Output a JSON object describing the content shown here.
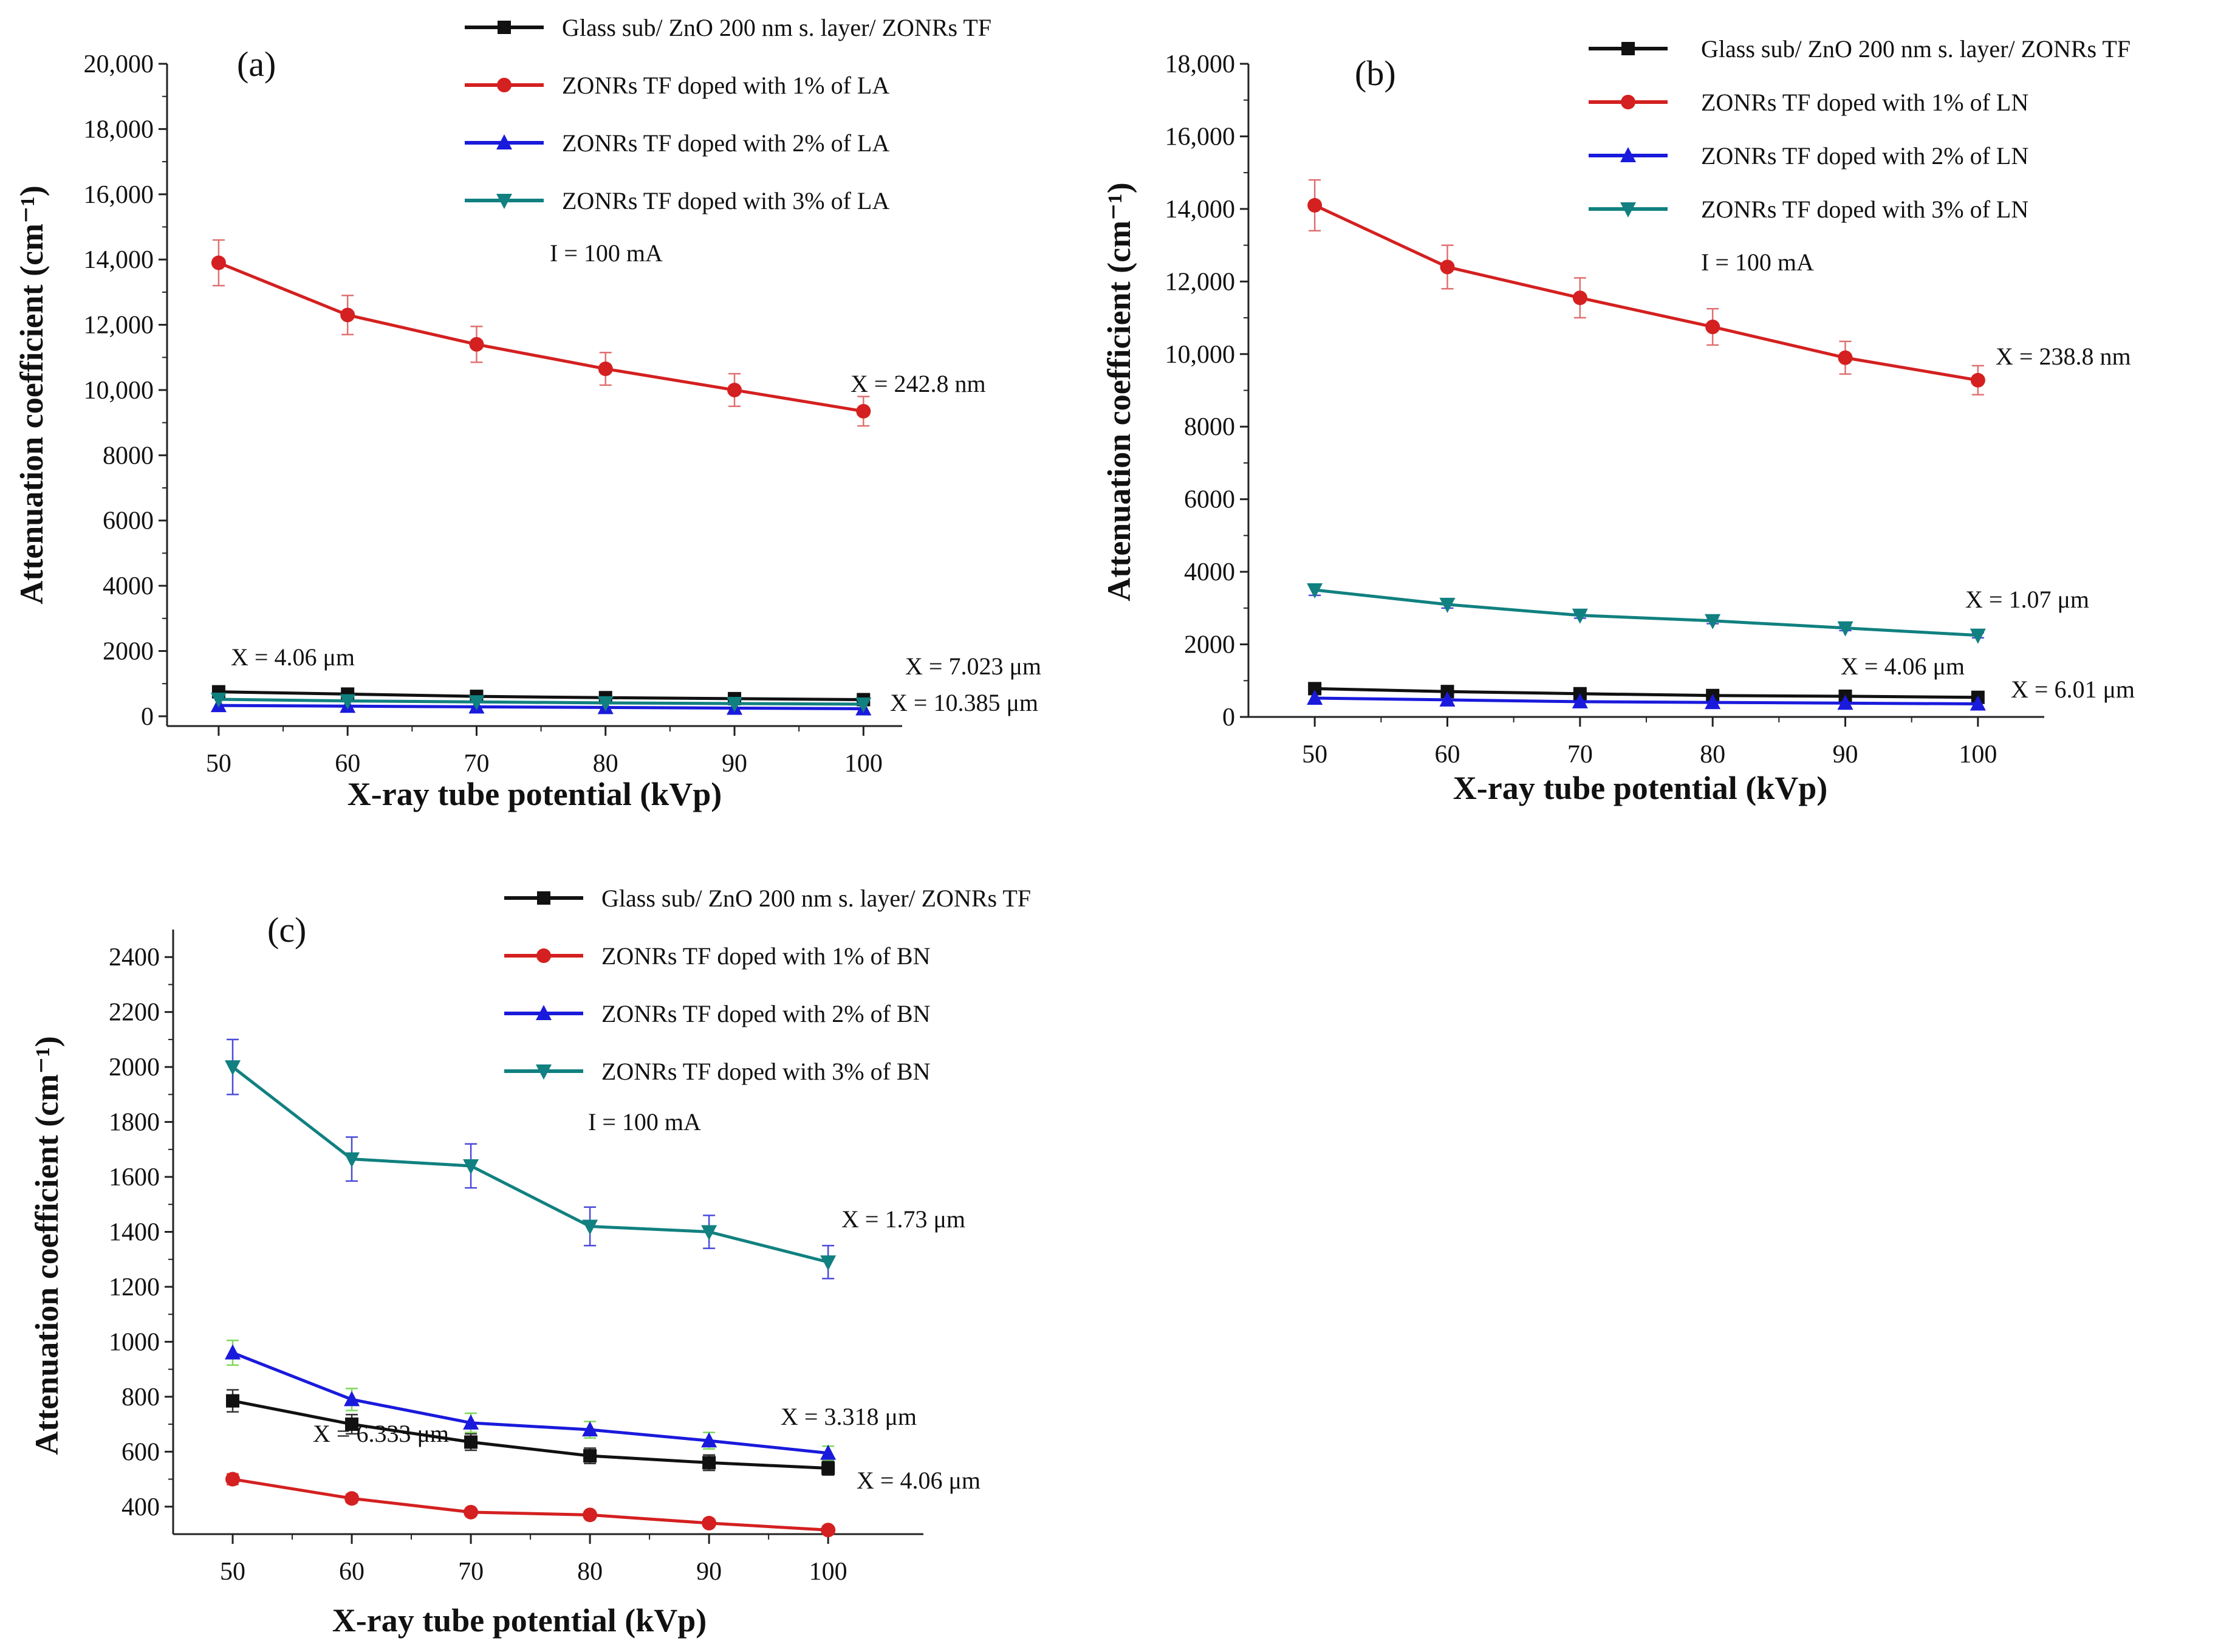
{
  "xlabel": "X-ray tube potential (kVp)",
  "ylabel": "Attenuation coefficient (cm⁻¹)",
  "chart_data": [
    {
      "panel": "(a)",
      "type": "line",
      "x": [
        50,
        60,
        70,
        80,
        90,
        100
      ],
      "xticks": [
        "50",
        "60",
        "70",
        "80",
        "90",
        "100"
      ],
      "ylim": [
        -300,
        20000
      ],
      "yticks": [
        0,
        2000,
        4000,
        6000,
        8000,
        10000,
        12000,
        14000,
        16000,
        18000,
        20000
      ],
      "ytick_labels": [
        "0",
        "2000",
        "4000",
        "6000",
        "8000",
        "10,000",
        "12,000",
        "14,000",
        "16,000",
        "18,000",
        "20,000"
      ],
      "condition": "I = 100 mA",
      "series": [
        {
          "name": "Glass sub/ ZnO 200 nm s. layer/ ZONRs TF",
          "color": "#111111",
          "marker": "square",
          "values": [
            750,
            680,
            610,
            570,
            540,
            510
          ],
          "err": [
            0,
            0,
            0,
            0,
            0,
            0
          ]
        },
        {
          "name": "ZONRs TF doped with 1% of LA",
          "color": "#d42020",
          "marker": "circle",
          "values": [
            13900,
            12300,
            11400,
            10650,
            10000,
            9350
          ],
          "err": [
            700,
            600,
            550,
            500,
            500,
            450
          ]
        },
        {
          "name": "ZONRs TF doped with 2% of LA",
          "color": "#1a1adc",
          "marker": "triangle-up",
          "values": [
            330,
            310,
            290,
            270,
            250,
            230
          ],
          "err": [
            0,
            0,
            0,
            0,
            0,
            0
          ]
        },
        {
          "name": "ZONRs TF doped with 3% of LA",
          "color": "#118080",
          "marker": "triangle-down",
          "values": [
            520,
            470,
            440,
            410,
            390,
            370
          ],
          "err": [
            0,
            0,
            0,
            0,
            0,
            0
          ]
        }
      ],
      "annotations": [
        {
          "text": "X = 242.8 nm",
          "color": "#d42020"
        },
        {
          "text": "X = 4.06 μm",
          "color": "#111111"
        },
        {
          "text": "X = 7.023 μm",
          "color": "#118080"
        },
        {
          "text": "X = 10.385 μm",
          "color": "#1a1adc"
        }
      ]
    },
    {
      "panel": "(b)",
      "type": "line",
      "x": [
        50,
        60,
        70,
        80,
        90,
        100
      ],
      "xticks": [
        "50",
        "60",
        "70",
        "80",
        "90",
        "100"
      ],
      "ylim": [
        0,
        18000
      ],
      "yticks": [
        0,
        2000,
        4000,
        6000,
        8000,
        10000,
        12000,
        14000,
        16000,
        18000
      ],
      "ytick_labels": [
        "0",
        "2000",
        "4000",
        "6000",
        "8000",
        "10,000",
        "12,000",
        "14,000",
        "16,000",
        "18,000"
      ],
      "condition": "I = 100 mA",
      "series": [
        {
          "name": "Glass sub/ ZnO 200 nm s. layer/ ZONRs TF",
          "color": "#111111",
          "marker": "square",
          "values": [
            780,
            700,
            640,
            590,
            570,
            540
          ],
          "err": [
            0,
            0,
            0,
            0,
            0,
            0
          ]
        },
        {
          "name": "ZONRs TF doped with 1% of LN",
          "color": "#d42020",
          "marker": "circle",
          "values": [
            14100,
            12400,
            11550,
            10750,
            9900,
            9280
          ],
          "err": [
            700,
            600,
            550,
            500,
            450,
            400
          ]
        },
        {
          "name": "ZONRs TF doped with 2% of LN",
          "color": "#1a1adc",
          "marker": "triangle-up",
          "values": [
            520,
            470,
            420,
            400,
            380,
            360
          ],
          "err": [
            0,
            0,
            0,
            0,
            0,
            0
          ]
        },
        {
          "name": "ZONRs TF doped with 3% of LN",
          "color": "#118080",
          "marker": "triangle-down",
          "values": [
            3500,
            3100,
            2800,
            2650,
            2450,
            2250
          ],
          "err": [
            150,
            100,
            80,
            80,
            70,
            70
          ]
        }
      ],
      "annotations": [
        {
          "text": "X = 238.8 nm",
          "color": "#d42020"
        },
        {
          "text": "X = 1.07 μm",
          "color": "#118080"
        },
        {
          "text": "X = 4.06 μm",
          "color": "#111111"
        },
        {
          "text": "X = 6.01 μm",
          "color": "#1a1adc"
        }
      ]
    },
    {
      "panel": "(c)",
      "type": "line",
      "x": [
        50,
        60,
        70,
        80,
        90,
        100
      ],
      "xticks": [
        "50",
        "60",
        "70",
        "80",
        "90",
        "100"
      ],
      "ylim": [
        300,
        2500
      ],
      "yticks": [
        400,
        600,
        800,
        1000,
        1200,
        1400,
        1600,
        1800,
        2000,
        2200,
        2400
      ],
      "ytick_labels": [
        "400",
        "600",
        "800",
        "1000",
        "1200",
        "1400",
        "1600",
        "1800",
        "2000",
        "2200",
        "2400"
      ],
      "condition": "I = 100 mA",
      "series": [
        {
          "name": "Glass sub/ ZnO 200 nm s. layer/ ZONRs TF",
          "color": "#111111",
          "marker": "square",
          "values": [
            785,
            700,
            635,
            585,
            560,
            540
          ],
          "err": [
            40,
            35,
            30,
            28,
            28,
            25
          ]
        },
        {
          "name": "ZONRs TF doped with 1% of BN",
          "color": "#d42020",
          "marker": "circle",
          "values": [
            500,
            430,
            380,
            370,
            340,
            315
          ],
          "err": [
            20,
            15,
            12,
            12,
            10,
            8
          ]
        },
        {
          "name": "ZONRs TF doped with 2% of BN",
          "color": "#1a1adc",
          "marker": "triangle-up",
          "values": [
            960,
            790,
            705,
            680,
            640,
            595
          ],
          "err": [
            45,
            40,
            35,
            30,
            30,
            25
          ]
        },
        {
          "name": "ZONRs TF doped with 3% of BN",
          "color": "#118080",
          "marker": "triangle-down",
          "values": [
            2000,
            1665,
            1640,
            1420,
            1400,
            1290
          ],
          "err": [
            100,
            80,
            80,
            70,
            60,
            60
          ]
        }
      ],
      "annotations": [
        {
          "text": "X = 1.73 μm",
          "color": "#118080"
        },
        {
          "text": "X = 3.318 μm",
          "color": "#1a1adc"
        },
        {
          "text": "X = 4.06 μm",
          "color": "#111111"
        },
        {
          "text": "X = 6.333 μm",
          "color": "#d42020"
        }
      ]
    }
  ]
}
